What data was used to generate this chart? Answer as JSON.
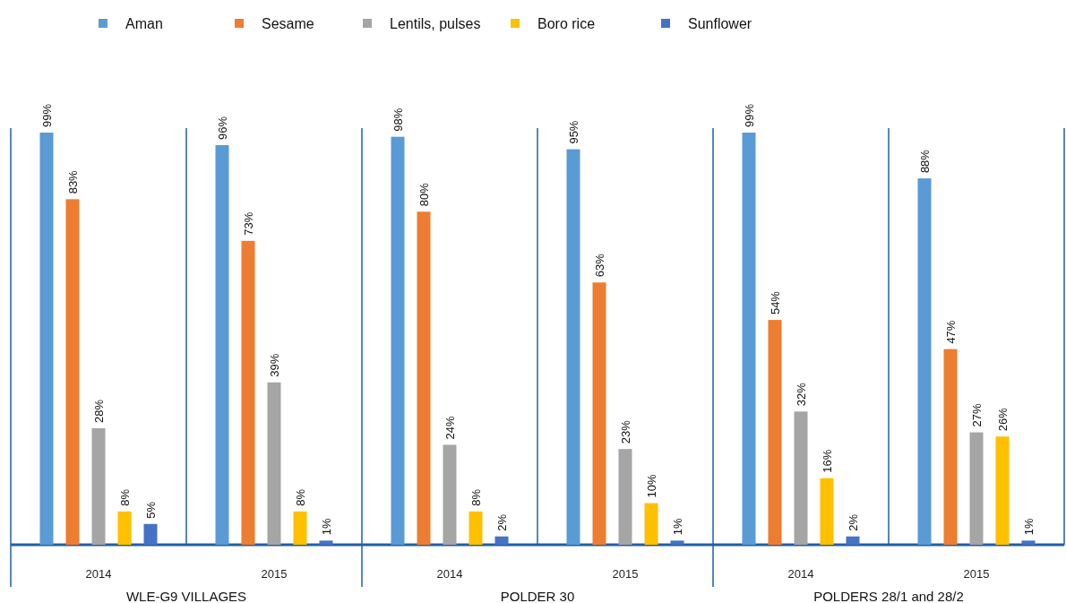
{
  "chart_data": {
    "type": "bar",
    "categories": [
      "2014",
      "2015",
      "2014",
      "2015",
      "2014",
      "2015"
    ],
    "series": [
      {
        "name": "Aman",
        "color": "#5b9bd5",
        "values": [
          99,
          96,
          98,
          95,
          99,
          88
        ],
        "value_labels": [
          "99%",
          "96%",
          "98%",
          "95%",
          "99%",
          "88%"
        ]
      },
      {
        "name": "Sesame",
        "color": "#ed7d31",
        "values": [
          83,
          73,
          80,
          63,
          54,
          47
        ],
        "value_labels": [
          "83%",
          "73%",
          "80%",
          "63%",
          "54%",
          "47%"
        ]
      },
      {
        "name": "Lentils, pulses",
        "color": "#a5a5a5",
        "values": [
          28,
          39,
          24,
          23,
          32,
          27
        ],
        "value_labels": [
          "28%",
          "39%",
          "24%",
          "23%",
          "32%",
          "27%"
        ]
      },
      {
        "name": "Boro rice",
        "color": "#ffc000",
        "values": [
          8,
          8,
          8,
          10,
          16,
          26
        ],
        "value_labels": [
          "8%",
          "8%",
          "8%",
          "10%",
          "16%",
          "26%"
        ]
      },
      {
        "name": "Sunflower",
        "color": "#4472c4",
        "values": [
          5,
          1,
          2,
          1,
          2,
          1
        ],
        "value_labels": [
          "5%",
          "1%",
          "2%",
          "1%",
          "2%",
          "1%"
        ]
      }
    ],
    "legend": "top",
    "tick_labels": "x",
    "annotations": [
      "WLE-G9 VILLAGES",
      "POLDER 30",
      "POLDERS 28/1 and 28/2"
    ]
  }
}
